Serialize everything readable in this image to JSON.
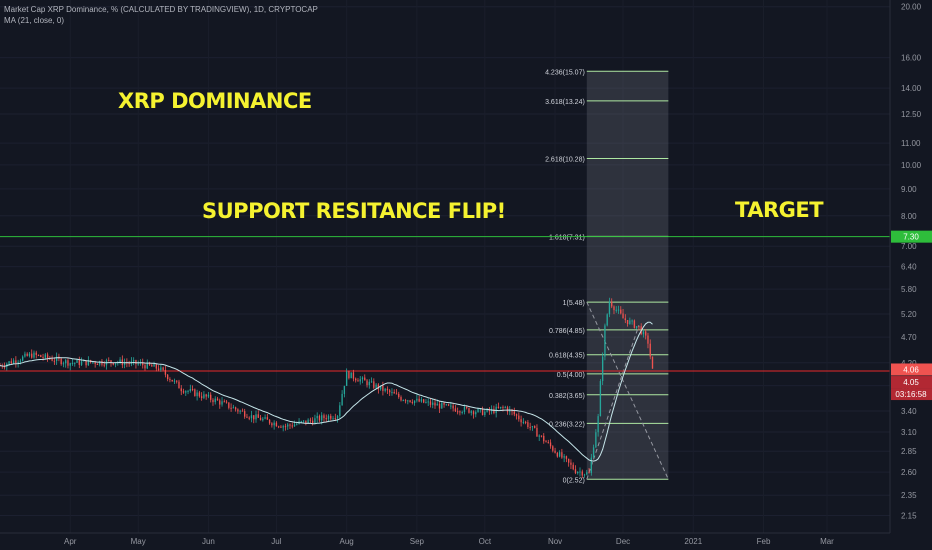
{
  "legend": {
    "title": "Market Cap XRP Dominance, % (CALCULATED BY TRADINGVIEW), 1D, CRYPTOCAP",
    "ma": "MA (21, close, 0)"
  },
  "annotations": {
    "title": "XRP DOMINANCE",
    "flip": "SUPPORT RESITANCE FLIP!",
    "target": "TARGET"
  },
  "price_badges": {
    "green": "7.30",
    "red1": "4.06",
    "red2": "4.05",
    "countdown": "03:16:58"
  },
  "colors": {
    "background": "#131722",
    "up": "#26a69a",
    "down": "#ef5350",
    "ma": "#c6e6ea",
    "fib": "#aee8a2",
    "green_line": "#2ebd3b",
    "red_line": "#e52a2a",
    "annotation": "#f5f230"
  },
  "chart_data": {
    "type": "candlestick",
    "title": "Market Cap XRP Dominance, % (CALCULATED BY TRADINGVIEW), 1D, CRYPTOCAP",
    "y_scale": "log",
    "ylim": [
      2.0,
      20.6
    ],
    "y_ticks": [
      "20.00",
      "16.00",
      "14.00",
      "12.50",
      "11.00",
      "10.00",
      "9.00",
      "8.00",
      "7.00",
      "6.40",
      "5.80",
      "5.20",
      "4.70",
      "4.20",
      "3.80",
      "3.40",
      "3.10",
      "2.85",
      "2.60",
      "2.35",
      "2.15"
    ],
    "x_ticks": [
      "Apr",
      "May",
      "Jun",
      "Jul",
      "Aug",
      "Sep",
      "Oct",
      "Nov",
      "Dec",
      "2021",
      "Feb",
      "Mar"
    ],
    "xlim": [
      "2020-03-01",
      "2021-03-20"
    ],
    "ohlc_keypoints": [
      {
        "date": "2020-03-01",
        "close": 4.15
      },
      {
        "date": "2020-03-15",
        "close": 4.35
      },
      {
        "date": "2020-04-01",
        "close": 4.2
      },
      {
        "date": "2020-04-20",
        "close": 4.22
      },
      {
        "date": "2020-05-01",
        "close": 4.18
      },
      {
        "date": "2020-05-10",
        "close": 4.1
      },
      {
        "date": "2020-05-20",
        "close": 3.75
      },
      {
        "date": "2020-06-05",
        "close": 3.55
      },
      {
        "date": "2020-06-20",
        "close": 3.32
      },
      {
        "date": "2020-07-05",
        "close": 3.18
      },
      {
        "date": "2020-07-15",
        "close": 3.25
      },
      {
        "date": "2020-07-28",
        "close": 3.35
      },
      {
        "date": "2020-08-01",
        "close": 4.0
      },
      {
        "date": "2020-08-10",
        "close": 3.85
      },
      {
        "date": "2020-08-25",
        "close": 3.6
      },
      {
        "date": "2020-09-15",
        "close": 3.45
      },
      {
        "date": "2020-10-01",
        "close": 3.38
      },
      {
        "date": "2020-10-10",
        "close": 3.45
      },
      {
        "date": "2020-10-20",
        "close": 3.2
      },
      {
        "date": "2020-11-01",
        "close": 2.85
      },
      {
        "date": "2020-11-10",
        "close": 2.62
      },
      {
        "date": "2020-11-16",
        "close": 2.58
      },
      {
        "date": "2020-11-20",
        "close": 3.3
      },
      {
        "date": "2020-11-23",
        "close": 4.9
      },
      {
        "date": "2020-11-25",
        "close": 5.5
      },
      {
        "date": "2020-12-01",
        "close": 5.1
      },
      {
        "date": "2020-12-08",
        "close": 4.9
      },
      {
        "date": "2020-12-12",
        "close": 4.6
      },
      {
        "date": "2020-12-14",
        "close": 4.05
      }
    ],
    "moving_average": {
      "name": "MA (21, close, 0)",
      "period": 21
    },
    "horizontal_lines": [
      {
        "value": 7.3,
        "color": "green"
      },
      {
        "value": 4.05,
        "color": "red"
      }
    ],
    "fibonacci_extension": {
      "from": "2020-11-15",
      "to": "2020-12-21",
      "levels": [
        {
          "ratio": 0,
          "value": 2.52,
          "label": "0(2.52)"
        },
        {
          "ratio": 0.236,
          "value": 3.22,
          "label": "0.236(3.22)"
        },
        {
          "ratio": 0.382,
          "value": 3.65,
          "label": "0.382(3.65)"
        },
        {
          "ratio": 0.5,
          "value": 4.0,
          "label": "0.5(4.00)"
        },
        {
          "ratio": 0.618,
          "value": 4.35,
          "label": "0.618(4.35)"
        },
        {
          "ratio": 0.786,
          "value": 4.85,
          "label": "0.786(4.85)"
        },
        {
          "ratio": 1,
          "value": 5.48,
          "label": "1(5.48)"
        },
        {
          "ratio": 1.618,
          "value": 7.31,
          "label": "1.618(7.31)"
        },
        {
          "ratio": 2.618,
          "value": 10.28,
          "label": "2.618(10.28)"
        },
        {
          "ratio": 3.618,
          "value": 13.24,
          "label": "3.618(13.24)"
        },
        {
          "ratio": 4.236,
          "value": 15.07,
          "label": "4.236(15.07)"
        }
      ]
    }
  }
}
